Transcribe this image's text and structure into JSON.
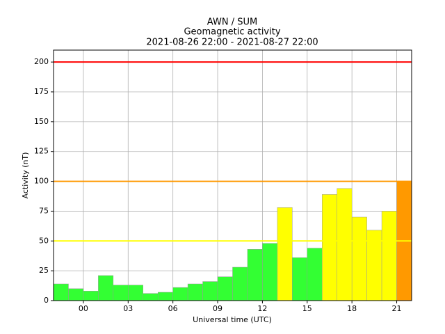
{
  "chart_data": {
    "type": "bar",
    "title": [
      "AWN / SUM",
      "Geomagnetic activity",
      "2021-08-26 22:00 - 2021-08-27 22:00"
    ],
    "xlabel": "Universal time (UTC)",
    "ylabel": "Activity (nT)",
    "x": [
      -2,
      -1,
      0,
      1,
      2,
      3,
      4,
      5,
      6,
      7,
      8,
      9,
      10,
      11,
      12,
      13,
      14,
      15,
      16,
      17,
      18,
      19,
      20,
      21
    ],
    "values": [
      14,
      10,
      8,
      21,
      13,
      13,
      6,
      7,
      11,
      14,
      16,
      20,
      28,
      43,
      48,
      78,
      36,
      44,
      89,
      94,
      70,
      59,
      75,
      100
    ],
    "colors": [
      "#33ff33",
      "#33ff33",
      "#33ff33",
      "#33ff33",
      "#33ff33",
      "#33ff33",
      "#33ff33",
      "#33ff33",
      "#33ff33",
      "#33ff33",
      "#33ff33",
      "#33ff33",
      "#33ff33",
      "#33ff33",
      "#33ff33",
      "#ffff00",
      "#33ff33",
      "#33ff33",
      "#ffff00",
      "#ffff00",
      "#ffff00",
      "#ffff00",
      "#ffff00",
      "#ff9900"
    ],
    "bar_width": 1,
    "thresholds": [
      {
        "value": 50,
        "color": "#ffff00"
      },
      {
        "value": 100,
        "color": "#ff9900"
      },
      {
        "value": 200,
        "color": "#ff0000"
      }
    ],
    "xlim": [
      -2,
      22
    ],
    "ylim": [
      0,
      210
    ],
    "xticks": [
      {
        "value": 0,
        "label": "00"
      },
      {
        "value": 3,
        "label": "03"
      },
      {
        "value": 6,
        "label": "06"
      },
      {
        "value": 9,
        "label": "09"
      },
      12,
      15,
      18,
      21
    ],
    "yticks": [
      0,
      25,
      50,
      75,
      100,
      125,
      150,
      175,
      200
    ],
    "grid": true
  }
}
